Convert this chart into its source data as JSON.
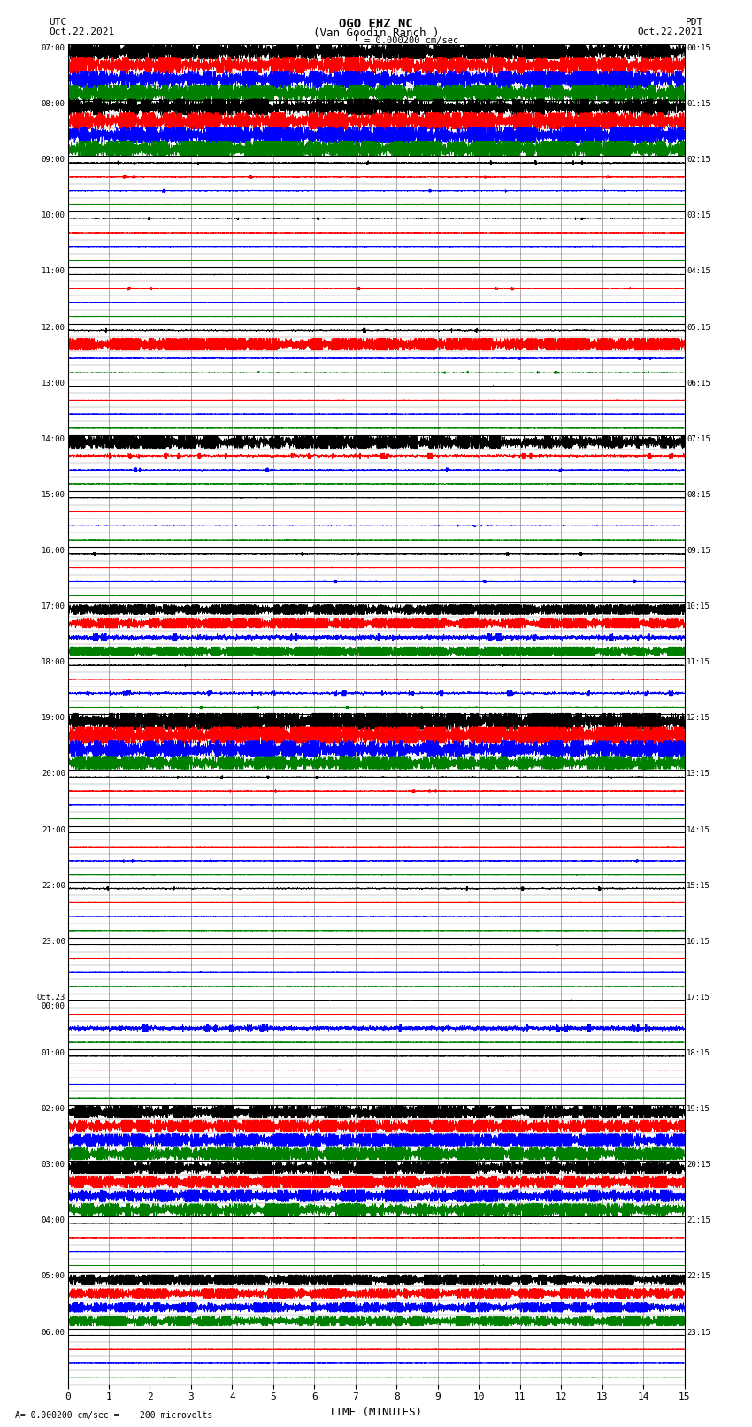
{
  "title_line1": "OGO EHZ NC",
  "title_line2": "(Van Goodin Ranch )",
  "left_header_line1": "UTC",
  "left_header_line2": "Oct.22,2021",
  "right_header_line1": "PDT",
  "right_header_line2": "Oct.22,2021",
  "scale_label": "= 0.000200 cm/sec",
  "bottom_label": "= 0.000200 cm/sec =    200 microvolts",
  "xlabel": "TIME (MINUTES)",
  "xlim": [
    0,
    15
  ],
  "xticks": [
    0,
    1,
    2,
    3,
    4,
    5,
    6,
    7,
    8,
    9,
    10,
    11,
    12,
    13,
    14,
    15
  ],
  "background_color": "#ffffff",
  "grid_color": "#888888",
  "colors": [
    "black",
    "red",
    "blue",
    "green"
  ],
  "row_labels_left": [
    "07:00",
    "08:00",
    "09:00",
    "10:00",
    "11:00",
    "12:00",
    "13:00",
    "14:00",
    "15:00",
    "16:00",
    "17:00",
    "18:00",
    "19:00",
    "20:00",
    "21:00",
    "22:00",
    "23:00",
    "Oct.23\n00:00",
    "01:00",
    "02:00",
    "03:00",
    "04:00",
    "05:00",
    "06:00"
  ],
  "row_labels_right": [
    "00:15",
    "01:15",
    "02:15",
    "03:15",
    "04:15",
    "05:15",
    "06:15",
    "07:15",
    "08:15",
    "09:15",
    "10:15",
    "11:15",
    "12:15",
    "13:15",
    "14:15",
    "15:15",
    "16:15",
    "17:15",
    "18:15",
    "19:15",
    "20:15",
    "21:15",
    "22:15",
    "23:15"
  ],
  "n_rows": 24,
  "n_traces_per_row": 4,
  "seed": 42,
  "row_activity": {
    "0": [
      0.38,
      0.38,
      0.38,
      0.38
    ],
    "1": [
      0.38,
      0.38,
      0.38,
      0.38
    ],
    "2": [
      0.1,
      0.06,
      0.07,
      0.05
    ],
    "3": [
      0.06,
      0.04,
      0.05,
      0.04
    ],
    "4": [
      0.04,
      0.08,
      0.04,
      0.04
    ],
    "5": [
      0.1,
      0.28,
      0.06,
      0.06
    ],
    "6": [
      0.04,
      0.04,
      0.04,
      0.04
    ],
    "7": [
      0.28,
      0.14,
      0.1,
      0.06
    ],
    "8": [
      0.04,
      0.04,
      0.06,
      0.04
    ],
    "9": [
      0.06,
      0.04,
      0.06,
      0.04
    ],
    "10": [
      0.22,
      0.22,
      0.18,
      0.22
    ],
    "11": [
      0.06,
      0.04,
      0.14,
      0.06
    ],
    "12": [
      0.38,
      0.38,
      0.38,
      0.28
    ],
    "13": [
      0.06,
      0.06,
      0.04,
      0.04
    ],
    "14": [
      0.04,
      0.04,
      0.06,
      0.04
    ],
    "15": [
      0.1,
      0.04,
      0.04,
      0.04
    ],
    "16": [
      0.04,
      0.04,
      0.04,
      0.04
    ],
    "17": [
      0.04,
      0.04,
      0.18,
      0.04
    ],
    "18": [
      0.04,
      0.04,
      0.04,
      0.04
    ],
    "19": [
      0.28,
      0.28,
      0.28,
      0.28
    ],
    "20": [
      0.28,
      0.28,
      0.28,
      0.28
    ],
    "21": [
      0.04,
      0.04,
      0.04,
      0.04
    ],
    "22": [
      0.22,
      0.22,
      0.22,
      0.22
    ],
    "23": [
      0.04,
      0.04,
      0.04,
      0.04
    ]
  }
}
